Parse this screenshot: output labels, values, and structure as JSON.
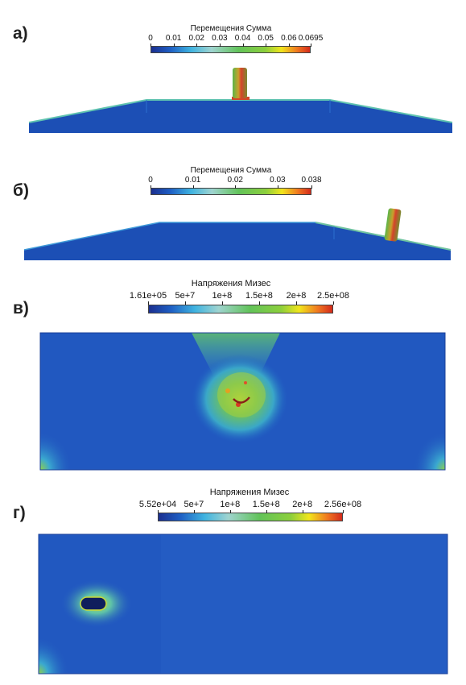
{
  "panels": [
    {
      "label": "а)",
      "legend_title": "Перемещения Сумма",
      "ticks": [
        "0",
        "0.01",
        "0.02",
        "0.03",
        "0.04",
        "0.05",
        "0.06",
        "0.0695"
      ],
      "tick_values": [
        0,
        0.01,
        0.02,
        0.03,
        0.04,
        0.05,
        0.06,
        0.0695
      ],
      "range": [
        0,
        0.0695
      ]
    },
    {
      "label": "б)",
      "legend_title": "Перемещения Сумма",
      "ticks": [
        "0",
        "0.01",
        "0.02",
        "0.03",
        "0.038"
      ],
      "tick_values": [
        0,
        0.01,
        0.02,
        0.03,
        0.038
      ],
      "range": [
        0,
        0.038
      ]
    },
    {
      "label": "в)",
      "legend_title": "Напряжения Мизес",
      "ticks": [
        "1.61e+05",
        "5e+7",
        "1e+8",
        "1.5e+8",
        "2e+8",
        "2.5e+08"
      ],
      "tick_values": [
        161000,
        50000000,
        100000000,
        150000000,
        200000000,
        250000000
      ],
      "range": [
        161000,
        250000000
      ]
    },
    {
      "label": "г)",
      "legend_title": "Напряжения Мизес",
      "ticks": [
        "5.52e+04",
        "5e+7",
        "1e+8",
        "1.5e+8",
        "2e+8",
        "2.56e+08"
      ],
      "tick_values": [
        55200,
        50000000,
        100000000,
        150000000,
        200000000,
        256000000
      ],
      "range": [
        55200,
        256000000
      ]
    }
  ],
  "colors": {
    "low": "#1a3fa6",
    "mid": "#5dc35a",
    "high": "#e0301e"
  }
}
